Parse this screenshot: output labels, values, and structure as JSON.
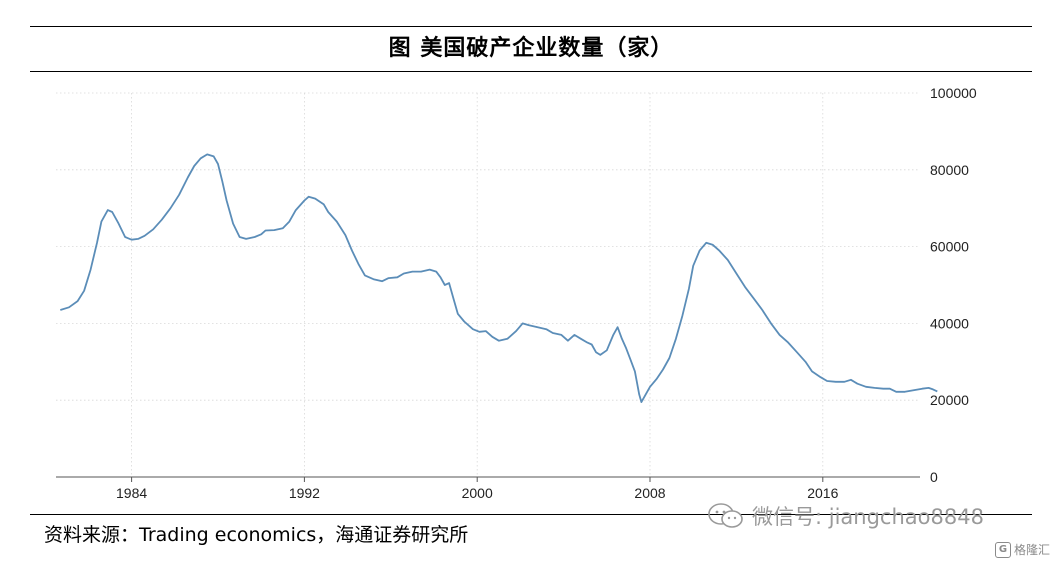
{
  "header": {
    "title": "图  美国破产企业数量（家）"
  },
  "footer": {
    "source": "资料来源：Trading economics，海通证券研究所"
  },
  "watermark": {
    "text": "微信号: jiangchao8848",
    "icon": "wechat-icon"
  },
  "logo": {
    "text": "格隆汇",
    "icon": "gelonghui-logo-icon"
  },
  "chart_data": {
    "type": "line",
    "title": "图  美国破产企业数量（家）",
    "xlabel": "",
    "ylabel": "",
    "xlim": [
      1980.5,
      2020.5
    ],
    "ylim": [
      0,
      100000
    ],
    "x_ticks": [
      1984,
      1992,
      2000,
      2008,
      2016
    ],
    "y_ticks": [
      0,
      20000,
      40000,
      60000,
      80000,
      100000
    ],
    "y_axis_side": "right",
    "grid": true,
    "line_color": "#5b8db8",
    "series": [
      {
        "name": "",
        "points": [
          [
            1980.7,
            43500
          ],
          [
            1981.1,
            44200
          ],
          [
            1981.5,
            45800
          ],
          [
            1981.8,
            48500
          ],
          [
            1982.1,
            54000
          ],
          [
            1982.4,
            61000
          ],
          [
            1982.6,
            66500
          ],
          [
            1982.9,
            69500
          ],
          [
            1983.1,
            69000
          ],
          [
            1983.4,
            66000
          ],
          [
            1983.7,
            62500
          ],
          [
            1984.0,
            61800
          ],
          [
            1984.3,
            62000
          ],
          [
            1984.6,
            62800
          ],
          [
            1985.0,
            64500
          ],
          [
            1985.4,
            67000
          ],
          [
            1985.8,
            70000
          ],
          [
            1986.2,
            73500
          ],
          [
            1986.6,
            78000
          ],
          [
            1986.9,
            81000
          ],
          [
            1987.2,
            83000
          ],
          [
            1987.5,
            84000
          ],
          [
            1987.8,
            83500
          ],
          [
            1988.0,
            81500
          ],
          [
            1988.2,
            77000
          ],
          [
            1988.4,
            72000
          ],
          [
            1988.7,
            66000
          ],
          [
            1989.0,
            62500
          ],
          [
            1989.3,
            62000
          ],
          [
            1989.7,
            62500
          ],
          [
            1990.0,
            63200
          ],
          [
            1990.2,
            64200
          ],
          [
            1990.6,
            64300
          ],
          [
            1991.0,
            64800
          ],
          [
            1991.3,
            66500
          ],
          [
            1991.6,
            69500
          ],
          [
            1992.0,
            72000
          ],
          [
            1992.2,
            73000
          ],
          [
            1992.5,
            72500
          ],
          [
            1992.9,
            71000
          ],
          [
            1993.1,
            69000
          ],
          [
            1993.5,
            66500
          ],
          [
            1993.9,
            63000
          ],
          [
            1994.2,
            59000
          ],
          [
            1994.5,
            55500
          ],
          [
            1994.8,
            52500
          ],
          [
            1995.2,
            51500
          ],
          [
            1995.6,
            51000
          ],
          [
            1995.9,
            51800
          ],
          [
            1996.3,
            52000
          ],
          [
            1996.6,
            53000
          ],
          [
            1997.0,
            53500
          ],
          [
            1997.4,
            53500
          ],
          [
            1997.8,
            54000
          ],
          [
            1998.1,
            53500
          ],
          [
            1998.3,
            52000
          ],
          [
            1998.5,
            50000
          ],
          [
            1998.7,
            50500
          ],
          [
            1998.9,
            46500
          ],
          [
            1999.1,
            42500
          ],
          [
            1999.4,
            40500
          ],
          [
            1999.8,
            38500
          ],
          [
            2000.1,
            37800
          ],
          [
            2000.4,
            38000
          ],
          [
            2000.7,
            36500
          ],
          [
            2001.0,
            35500
          ],
          [
            2001.4,
            36000
          ],
          [
            2001.8,
            38000
          ],
          [
            2002.1,
            40000
          ],
          [
            2002.4,
            39500
          ],
          [
            2002.8,
            39000
          ],
          [
            2003.2,
            38500
          ],
          [
            2003.5,
            37500
          ],
          [
            2003.9,
            37000
          ],
          [
            2004.2,
            35500
          ],
          [
            2004.5,
            37000
          ],
          [
            2004.8,
            36000
          ],
          [
            2005.1,
            35000
          ],
          [
            2005.3,
            34500
          ],
          [
            2005.5,
            32500
          ],
          [
            2005.7,
            31800
          ],
          [
            2006.0,
            33000
          ],
          [
            2006.3,
            37000
          ],
          [
            2006.5,
            39000
          ],
          [
            2006.7,
            36000
          ],
          [
            2006.9,
            33500
          ],
          [
            2007.1,
            30500
          ],
          [
            2007.3,
            27500
          ],
          [
            2007.5,
            21500
          ],
          [
            2007.6,
            19500
          ],
          [
            2007.8,
            21500
          ],
          [
            2008.0,
            23500
          ],
          [
            2008.3,
            25500
          ],
          [
            2008.6,
            28000
          ],
          [
            2008.9,
            31000
          ],
          [
            2009.2,
            36000
          ],
          [
            2009.5,
            42000
          ],
          [
            2009.8,
            49000
          ],
          [
            2010.0,
            55000
          ],
          [
            2010.3,
            59000
          ],
          [
            2010.6,
            61000
          ],
          [
            2010.9,
            60500
          ],
          [
            2011.2,
            59000
          ],
          [
            2011.6,
            56500
          ],
          [
            2012.0,
            53000
          ],
          [
            2012.4,
            49500
          ],
          [
            2012.8,
            46500
          ],
          [
            2013.2,
            43500
          ],
          [
            2013.6,
            40000
          ],
          [
            2014.0,
            37000
          ],
          [
            2014.4,
            35000
          ],
          [
            2014.8,
            32500
          ],
          [
            2015.2,
            30000
          ],
          [
            2015.5,
            27500
          ],
          [
            2015.9,
            26000
          ],
          [
            2016.2,
            25000
          ],
          [
            2016.6,
            24800
          ],
          [
            2017.0,
            24800
          ],
          [
            2017.3,
            25300
          ],
          [
            2017.6,
            24300
          ],
          [
            2018.0,
            23500
          ],
          [
            2018.4,
            23200
          ],
          [
            2018.8,
            23000
          ],
          [
            2019.1,
            23000
          ],
          [
            2019.4,
            22200
          ],
          [
            2019.8,
            22200
          ],
          [
            2020.2,
            22600
          ],
          [
            2020.6,
            23000
          ],
          [
            2020.9,
            23200
          ],
          [
            2021.1,
            22800
          ],
          [
            2021.3,
            22300
          ]
        ]
      }
    ]
  }
}
